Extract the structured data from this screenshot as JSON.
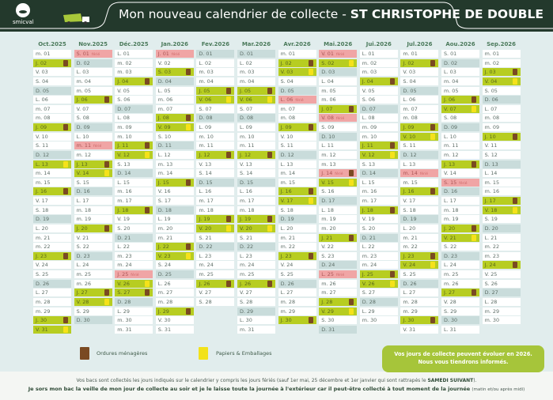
{
  "header": {
    "brand": "smicval",
    "title": "Mon nouveau calendrier de collecte - ",
    "commune": "ST CHRISTOPHE DE DOUBLE"
  },
  "colors": {
    "header": "#23392c",
    "collection": "#b7cd21",
    "sunday": "#c9dcdb",
    "holiday": "#f0a5a5",
    "ordures": "#7a4a22",
    "papiers": "#f5e21a"
  },
  "holiday_label": "férié",
  "months": [
    {
      "name": "Oct.2025",
      "days": [
        "m. 01",
        "J. 02",
        "V. 03",
        "S. 04",
        "D. 05",
        "L. 06",
        "m. 07",
        "m. 08",
        "J. 09",
        "V. 10",
        "S. 11",
        "D. 12",
        "L. 13",
        "m. 14",
        "m. 15",
        "J. 16",
        "V. 17",
        "S. 18",
        "D. 19",
        "L. 20",
        "m. 21",
        "m. 22",
        "J. 23",
        "V. 24",
        "S. 25",
        "D. 26",
        "L. 27",
        "m. 28",
        "m. 29",
        "J. 30",
        "V. 31"
      ],
      "ordures": [
        2,
        9,
        16,
        23,
        30
      ],
      "papiers": [
        13,
        31
      ],
      "feries": []
    },
    {
      "name": "Nov.2025",
      "days": [
        "S. 01",
        "D. 02",
        "L. 03",
        "m. 04",
        "m. 05",
        "J. 06",
        "V. 07",
        "S. 08",
        "D. 09",
        "L. 10",
        "m. 11",
        "m. 12",
        "J. 13",
        "V. 14",
        "S. 15",
        "D. 16",
        "L. 17",
        "m. 18",
        "m. 19",
        "J. 20",
        "V. 21",
        "S. 22",
        "D. 23",
        "L. 24",
        "m. 25",
        "m. 26",
        "J. 27",
        "V. 28",
        "S. 29",
        "D. 30"
      ],
      "ordures": [
        6,
        13,
        20,
        27
      ],
      "papiers": [
        14,
        28
      ],
      "feries": [
        1,
        11
      ]
    },
    {
      "name": "Déc.2025",
      "days": [
        "L. 01",
        "m. 02",
        "m. 03",
        "J. 04",
        "V. 05",
        "S. 06",
        "D. 07",
        "L. 08",
        "m. 09",
        "m. 10",
        "J. 11",
        "V. 12",
        "S. 13",
        "D. 14",
        "L. 15",
        "m. 16",
        "m. 17",
        "J. 18",
        "V. 19",
        "S. 20",
        "D. 21",
        "L. 22",
        "m. 23",
        "m. 24",
        "J. 25",
        "V. 26",
        "S. 27",
        "D. 28",
        "L. 29",
        "m. 30",
        "m. 31"
      ],
      "ordures": [
        4,
        11,
        18,
        27
      ],
      "papiers": [
        12,
        26
      ],
      "feries": [
        25
      ]
    },
    {
      "name": "Jan.2026",
      "days": [
        "J. 01",
        "V. 02",
        "S. 03",
        "D. 04",
        "L. 05",
        "m. 06",
        "m. 07",
        "J. 08",
        "V. 09",
        "S. 10",
        "D. 11",
        "L. 12",
        "m. 13",
        "m. 14",
        "J. 15",
        "V. 16",
        "S. 17",
        "D. 18",
        "L. 19",
        "m. 20",
        "m. 21",
        "J. 22",
        "V. 23",
        "S. 24",
        "D. 25",
        "L. 26",
        "m. 27",
        "m. 28",
        "J. 29",
        "V. 30",
        "S. 31"
      ],
      "ordures": [
        3,
        8,
        15,
        22,
        29
      ],
      "papiers": [
        9,
        23
      ],
      "feries": [
        1
      ]
    },
    {
      "name": "Fev.2026",
      "days": [
        "D. 01",
        "L. 02",
        "m. 03",
        "m. 04",
        "J. 05",
        "V. 06",
        "S. 07",
        "D. 08",
        "L. 09",
        "m. 10",
        "m. 11",
        "J. 12",
        "V. 13",
        "S. 14",
        "D. 15",
        "L. 16",
        "m. 17",
        "m. 18",
        "J. 19",
        "V. 20",
        "S. 21",
        "D. 22",
        "L. 23",
        "m. 24",
        "m. 25",
        "J. 26",
        "V. 27",
        "S. 28"
      ],
      "ordures": [
        5,
        12,
        19,
        26
      ],
      "papiers": [
        6,
        20
      ],
      "feries": []
    },
    {
      "name": "Mar.2026",
      "days": [
        "D. 01",
        "L. 02",
        "m. 03",
        "m. 04",
        "J. 05",
        "V. 06",
        "S. 07",
        "D. 08",
        "L. 09",
        "m. 10",
        "m. 11",
        "J. 12",
        "V. 13",
        "S. 14",
        "D. 15",
        "L. 16",
        "m. 17",
        "m. 18",
        "J. 19",
        "V. 20",
        "S. 21",
        "D. 22",
        "L. 23",
        "m. 24",
        "m. 25",
        "J. 26",
        "V. 27",
        "S. 28",
        "D. 29",
        "L. 30",
        "m. 31"
      ],
      "ordures": [
        5,
        12,
        19,
        26
      ],
      "papiers": [
        6,
        20
      ],
      "feries": []
    },
    {
      "name": "Avr.2026",
      "days": [
        "m. 01",
        "J. 02",
        "V. 03",
        "S. 04",
        "D. 05",
        "L. 06",
        "m. 07",
        "m. 08",
        "J. 09",
        "V. 10",
        "S. 11",
        "D. 12",
        "L. 13",
        "m. 14",
        "m. 15",
        "J. 16",
        "V. 17",
        "S. 18",
        "D. 19",
        "L. 20",
        "m. 21",
        "m. 22",
        "J. 23",
        "V. 24",
        "S. 25",
        "D. 26",
        "L. 27",
        "m. 28",
        "m. 29",
        "J. 30"
      ],
      "ordures": [
        2,
        9,
        16,
        23,
        30
      ],
      "papiers": [
        3,
        17
      ],
      "feries": [
        6
      ]
    },
    {
      "name": "Mai.2026",
      "days": [
        "V. 01",
        "S. 02",
        "D. 03",
        "L. 04",
        "m. 05",
        "m. 06",
        "J. 07",
        "V. 08",
        "S. 09",
        "D. 10",
        "L. 11",
        "m. 12",
        "m. 13",
        "J. 14",
        "V. 15",
        "S. 16",
        "D. 17",
        "L. 18",
        "m. 19",
        "m. 20",
        "J. 21",
        "V. 22",
        "S. 23",
        "D. 24",
        "L. 25",
        "m. 26",
        "m. 27",
        "J. 28",
        "V. 29",
        "S. 30",
        "D. 31"
      ],
      "ordures": [
        7,
        14,
        21,
        28
      ],
      "papiers": [
        2,
        15,
        29
      ],
      "feries": [
        1,
        8,
        14,
        25
      ]
    },
    {
      "name": "Jui.2026",
      "days": [
        "L. 01",
        "m. 02",
        "m. 03",
        "J. 04",
        "V. 05",
        "S. 06",
        "D. 07",
        "L. 08",
        "m. 09",
        "m. 10",
        "J. 11",
        "V. 12",
        "S. 13",
        "D. 14",
        "L. 15",
        "m. 16",
        "m. 17",
        "J. 18",
        "V. 19",
        "S. 20",
        "D. 21",
        "L. 22",
        "m. 23",
        "m. 24",
        "J. 25",
        "V. 26",
        "S. 27",
        "D. 28",
        "L. 29",
        "m. 30"
      ],
      "ordures": [
        4,
        11,
        18,
        25
      ],
      "papiers": [
        12,
        26
      ],
      "feries": []
    },
    {
      "name": "Jul.2026",
      "days": [
        "m. 01",
        "J. 02",
        "V. 03",
        "S. 04",
        "D. 05",
        "L. 06",
        "m. 07",
        "m. 08",
        "J. 09",
        "V. 10",
        "S. 11",
        "D. 12",
        "L. 13",
        "m. 14",
        "m. 15",
        "J. 16",
        "V. 17",
        "S. 18",
        "D. 19",
        "L. 20",
        "m. 21",
        "m. 22",
        "J. 23",
        "V. 24",
        "S. 25",
        "D. 26",
        "L. 27",
        "m. 28",
        "m. 29",
        "J. 30",
        "V. 31"
      ],
      "ordures": [
        2,
        9,
        16,
        23,
        30
      ],
      "papiers": [
        10,
        24
      ],
      "feries": [
        14
      ]
    },
    {
      "name": "Aou.2026",
      "days": [
        "S. 01",
        "D. 02",
        "L. 03",
        "m. 04",
        "m. 05",
        "J. 06",
        "V. 07",
        "S. 08",
        "D. 09",
        "L. 10",
        "m. 11",
        "m. 12",
        "J. 13",
        "V. 14",
        "S. 15",
        "D. 16",
        "L. 17",
        "m. 18",
        "m. 19",
        "J. 20",
        "V. 21",
        "S. 22",
        "D. 23",
        "L. 24",
        "m. 25",
        "m. 26",
        "J. 27",
        "V. 28",
        "S. 29",
        "D. 30",
        "L. 31"
      ],
      "ordures": [
        6,
        13,
        20,
        27
      ],
      "papiers": [
        7,
        21
      ],
      "feries": [
        15
      ]
    },
    {
      "name": "Sep.2026",
      "days": [
        "m. 01",
        "m. 02",
        "J. 03",
        "V. 04",
        "S. 05",
        "D. 06",
        "L. 07",
        "m. 08",
        "m. 09",
        "J. 10",
        "V. 11",
        "S. 12",
        "D. 13",
        "L. 14",
        "m. 15",
        "m. 16",
        "J. 17",
        "V. 18",
        "S. 19",
        "D. 20",
        "L. 21",
        "m. 22",
        "m. 23",
        "J. 24",
        "V. 25",
        "S. 26",
        "D. 27",
        "L. 28",
        "m. 29",
        "m. 30"
      ],
      "ordures": [
        3,
        10,
        17,
        24
      ],
      "papiers": [
        4,
        18
      ],
      "feries": []
    }
  ],
  "legend": {
    "ordures": "Ordures ménagères",
    "papiers": "Papiers & Emballages"
  },
  "notice": {
    "line1": "Vos jours de collecte peuvent évoluer en 2026.",
    "line2": "Nous vous tiendrons informés."
  },
  "info": {
    "line1_a": "Vos bacs sont collectés les jours indiqués sur le calendrier y compris les jours fériés (sauf 1er mai, 25 décembre et 1er janvier qui sont rattrapés le ",
    "line1_b": "SAMEDI SUIVANT",
    "line1_c": ").",
    "line2_a": "Je sors mon bac la veille de mon jour de collecte au soir et je le laisse toute la journée à l'extérieur car il peut-être collecté à tout moment de la journée ",
    "line2_b": "(matin et/ou après midi)"
  }
}
